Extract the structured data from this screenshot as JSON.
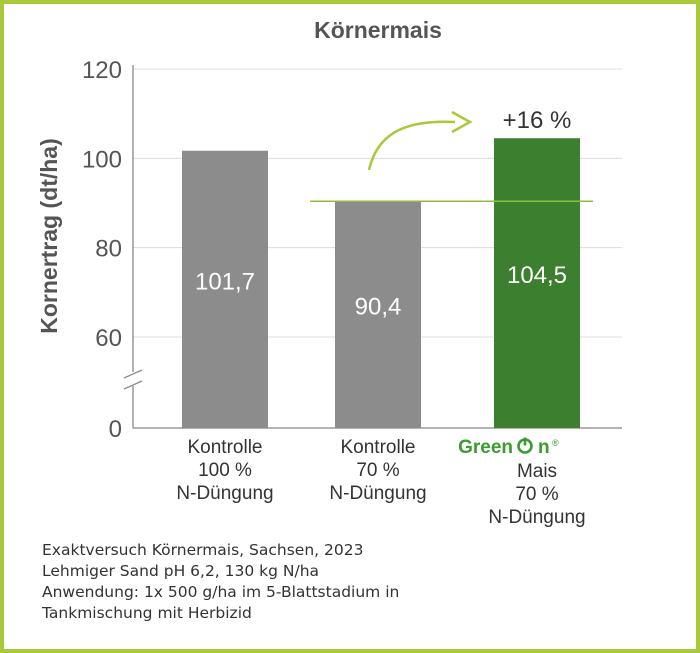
{
  "chart_data": {
    "type": "bar",
    "title": "Körnermais",
    "ylabel": "Kornertrag (dt/ha)",
    "xlabel": "",
    "ylim": [
      0,
      120
    ],
    "axis_break": {
      "between": [
        0,
        60
      ]
    },
    "yticks": [
      0,
      60,
      80,
      100,
      120
    ],
    "grid": true,
    "categories": [
      {
        "lines": [
          "Kontrolle",
          "100 %",
          "N-Düngung"
        ]
      },
      {
        "brand": {
          "text_before": "Green",
          "text_after": "n",
          "mark": "®"
        },
        "lines": [
          "Mais",
          "70 %",
          "N-Düngung"
        ]
      },
      {
        "lines": [
          "Kontrolle",
          "70 %",
          "N-Düngung"
        ]
      }
    ],
    "bars": [
      {
        "value": 101.7,
        "label": "101,7",
        "color": "#8c8c8c"
      },
      {
        "value": 90.4,
        "label": "90,4",
        "color": "#8c8c8c"
      },
      {
        "value": 104.5,
        "label": "104,5",
        "color": "#3b7f2f"
      }
    ],
    "reference_line": {
      "value": 90.4,
      "color": "#8cbf3f"
    },
    "annotation": {
      "text": "+16 %",
      "arrow_color": "#a8c93a"
    }
  },
  "footnote": {
    "lines": [
      "Exaktversuch Körnermais, Sachsen, 2023",
      "Lehmiger Sand pH 6,2, 130 kg N/ha",
      "Anwendung: 1x 500 g/ha im 5-Blattstadium in",
      "Tankmischung mit Herbizid"
    ]
  },
  "brand_color": "#3b9b2f",
  "frame_color": "#a8c93a"
}
